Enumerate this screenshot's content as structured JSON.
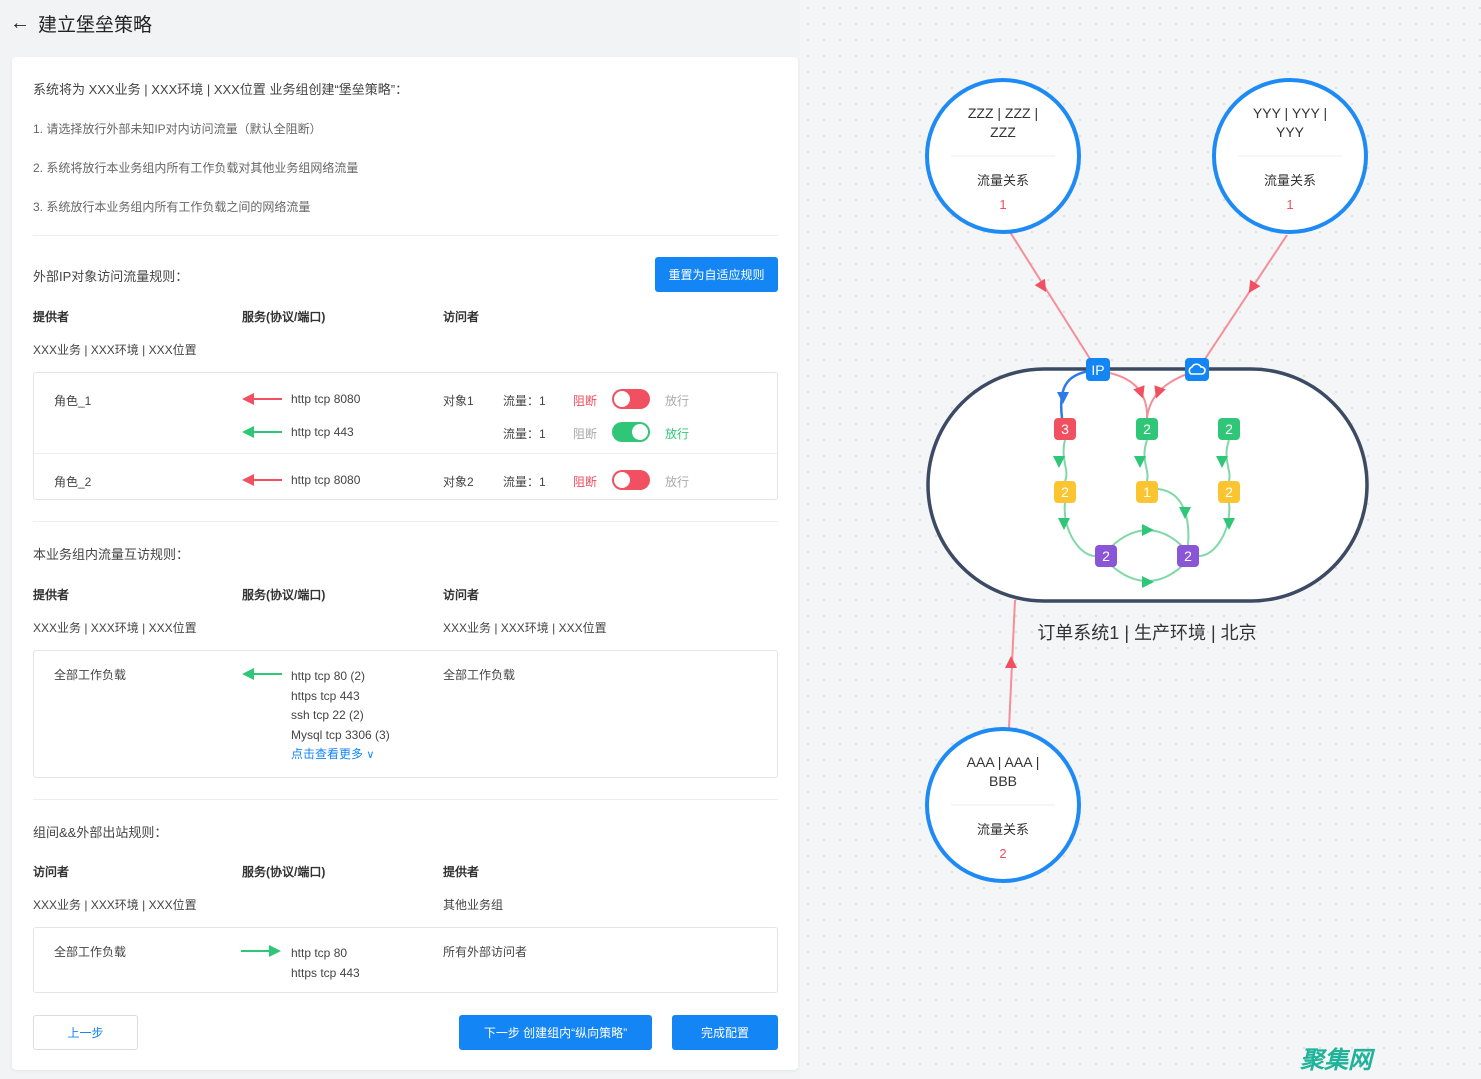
{
  "header": {
    "title": "建立堡垒策略",
    "back_icon": "arrow-left-icon"
  },
  "intro": {
    "summary": "系统将为 XXX业务 | XXX环境 | XXX位置 业务组创建“堡垒策略”：",
    "items": [
      "1. 请选择放行外部未知IP对内访问流量（默认全阻断）",
      "2. 系统将放行本业务组内所有工作负载对其他业务组网络流量",
      "3. 系统放行本业务组内所有工作负载之间的网络流量"
    ]
  },
  "external": {
    "title": "外部IP对象访问流量规则：",
    "reset_button": "重置为自适应规则",
    "headers": [
      "提供者",
      "服务(协议/端口)",
      "访问者"
    ],
    "provider": "XXX业务 | XXX环境 | XXX位置",
    "rows": [
      {
        "role": "角色_1",
        "service": "http tcp 8080",
        "visitor": "对象1",
        "flow": "流量：1",
        "block": "阻断",
        "allow": "放行",
        "state": "blocked",
        "arrow": "red"
      },
      {
        "role": "",
        "service": "http tcp 443",
        "visitor": "",
        "flow": "流量：1",
        "block": "阻断",
        "allow": "放行",
        "state": "allowed",
        "arrow": "green"
      },
      {
        "role": "角色_2",
        "service": "http tcp 8080",
        "visitor": "对象2",
        "flow": "流量：1",
        "block": "阻断",
        "allow": "放行",
        "state": "blocked",
        "arrow": "red"
      }
    ]
  },
  "internal": {
    "title": "本业务组内流量互访规则：",
    "headers": [
      "提供者",
      "服务(协议/端口)",
      "访问者"
    ],
    "provider": "XXX业务 | XXX环境 | XXX位置",
    "visitor": "XXX业务 | XXX环境 | XXX位置",
    "row": {
      "provider": "全部工作负载",
      "services": [
        "http tcp 80 (2)",
        "https tcp 443",
        "ssh tcp 22 (2)",
        "Mysql tcp 3306 (3)"
      ],
      "more": "点击查看更多",
      "visitor": "全部工作负载"
    }
  },
  "outbound": {
    "title": "组间&&外部出站规则：",
    "headers": [
      "访问者",
      "服务(协议/端口)",
      "提供者"
    ],
    "visitor": "XXX业务 | XXX环境 | XXX位置",
    "provider": "其他业务组",
    "row": {
      "visitor": "全部工作负载",
      "services": [
        "http tcp 80",
        "https tcp 443"
      ],
      "provider": "所有外部访问者"
    }
  },
  "footer": {
    "prev": "上一步",
    "next": "下一步 创建组内“纵向策略”",
    "finish": "完成配置"
  },
  "diagram": {
    "groups": [
      {
        "name_lines": [
          "ZZZ | ZZZ |",
          "ZZZ"
        ],
        "label": "流量关系",
        "count": "1"
      },
      {
        "name_lines": [
          "YYY | YYY |",
          "YYY"
        ],
        "label": "流量关系",
        "count": "1"
      },
      {
        "name_lines": [
          "AAA | AAA |",
          "BBB"
        ],
        "label": "流量关系",
        "count": "2"
      }
    ],
    "system_label": "订单系统1 | 生产环境 | 北京",
    "ip_badge": "IP",
    "cloud_icon": "cloud-sync-icon",
    "nodes": [
      {
        "value": "3",
        "color": "#f0505f"
      },
      {
        "value": "2",
        "color": "#2fc777"
      },
      {
        "value": "2",
        "color": "#2fc777"
      },
      {
        "value": "2",
        "color": "#fbc531"
      },
      {
        "value": "1",
        "color": "#fbc531"
      },
      {
        "value": "2",
        "color": "#fbc531"
      },
      {
        "value": "2",
        "color": "#8a55d6"
      },
      {
        "value": "2",
        "color": "#8a55d6"
      }
    ]
  },
  "colors": {
    "primary": "#1485f5",
    "block": "#f0505f",
    "allow": "#2fc777",
    "edge": "#f58e98"
  },
  "watermark": "聚集网"
}
